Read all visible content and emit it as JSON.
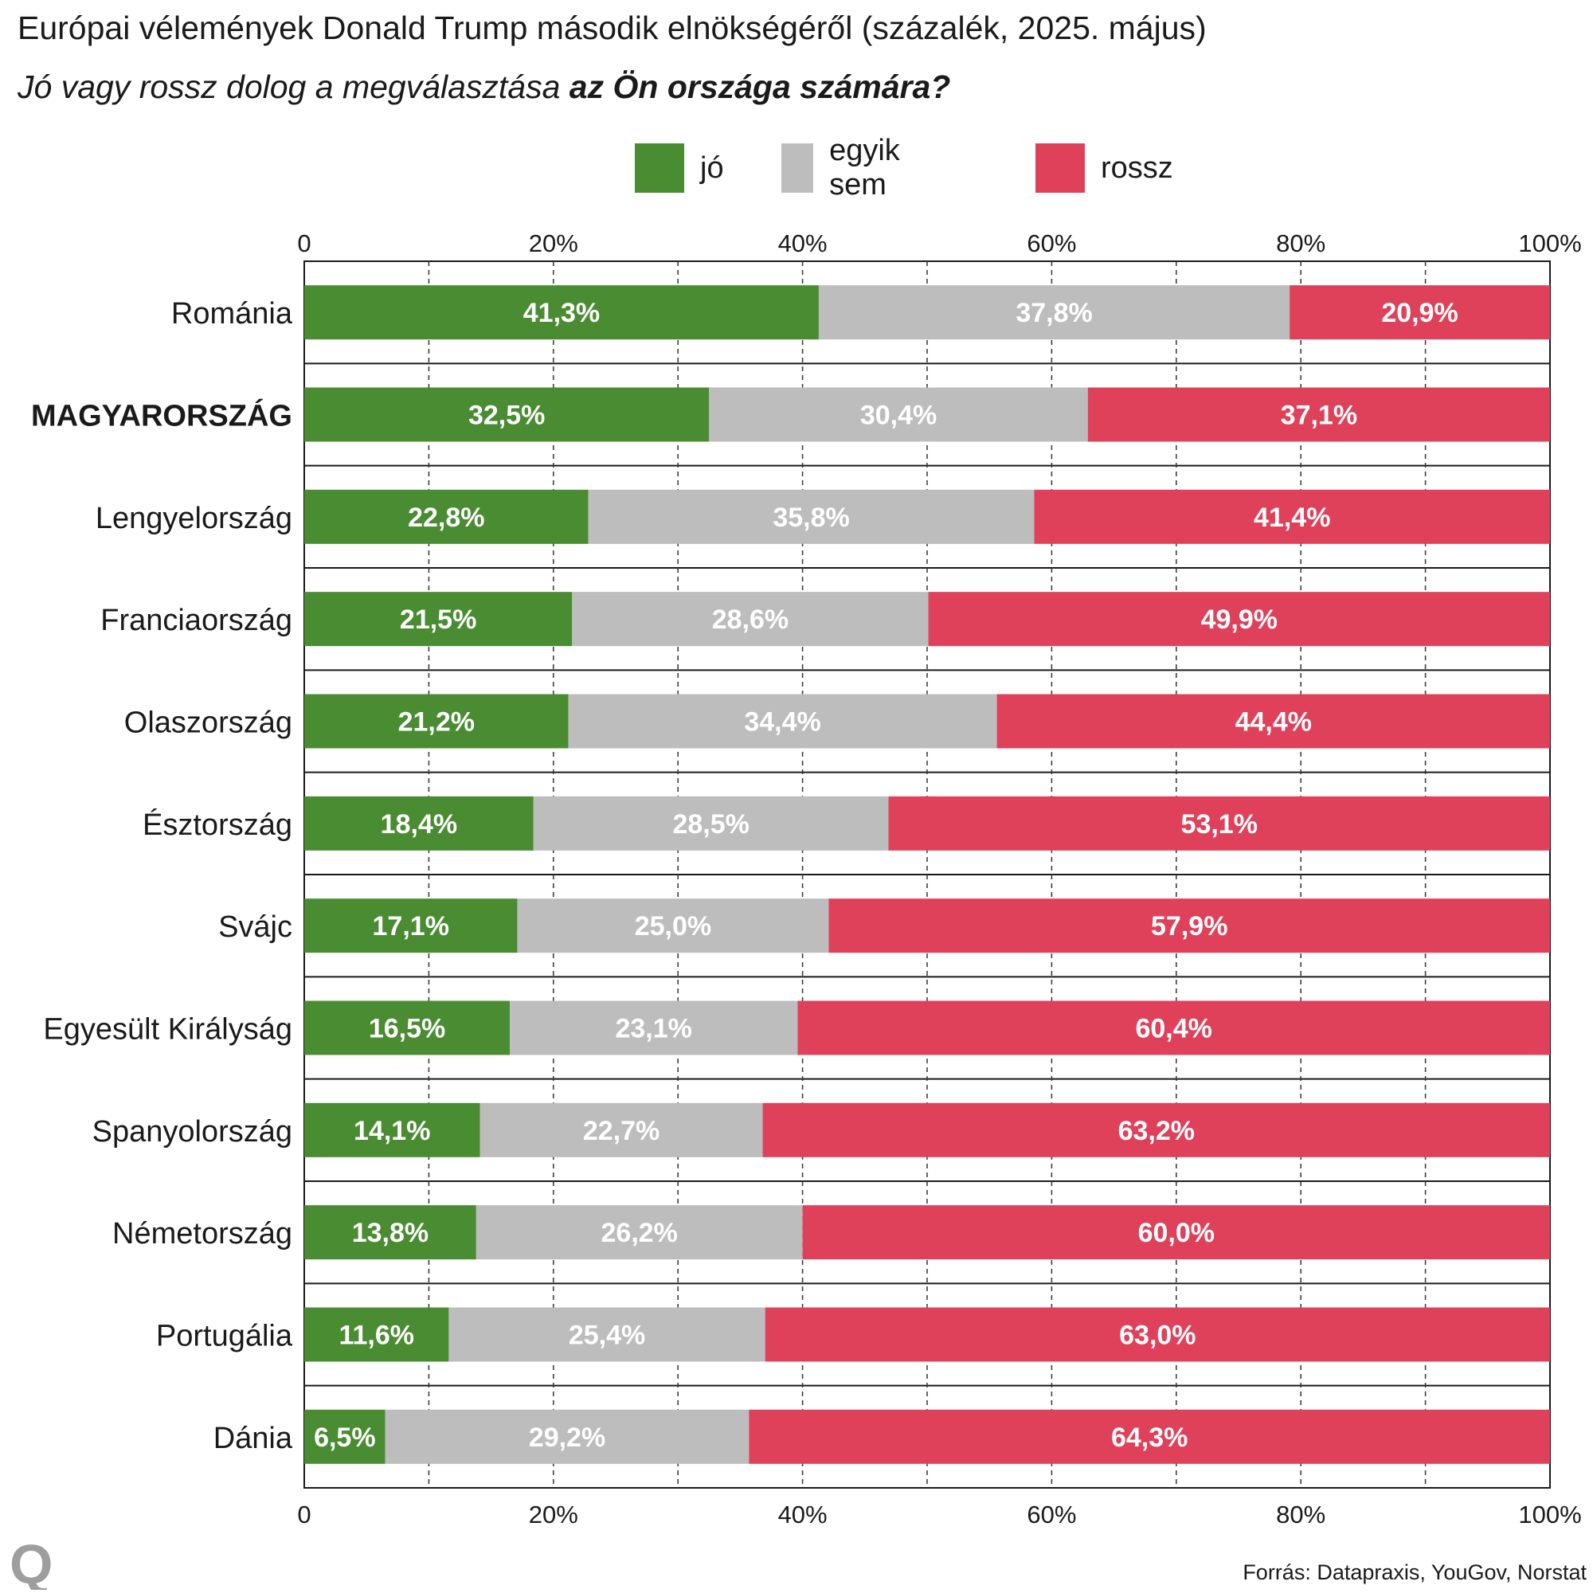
{
  "title": "Európai vélemények Donald Trump második elnökségéről (százalék, 2025. május)",
  "subtitle_plain": "Jó vagy rossz dolog a megválasztása ",
  "subtitle_bold": "az Ön országa számára?",
  "source": "Forrás: Datapraxis, YouGov, Norstat",
  "logo_text": "Q",
  "colors": {
    "jo": "#4a8c32",
    "egyik_sem": "#bdbdbd",
    "rossz": "#df415a"
  },
  "chart_data": {
    "type": "bar",
    "orientation": "horizontal",
    "stacked": true,
    "title": "Európai vélemények Donald Trump második elnökségéről (százalék, 2025. május)",
    "subtitle": "Jó vagy rossz dolog a megválasztása az Ön országa számára?",
    "categories": [
      "Románia",
      "MAGYARORSZÁG",
      "Lengyelország",
      "Franciaország",
      "Olaszország",
      "Észtország",
      "Svájc",
      "Egyesült Királyság",
      "Spanyolország",
      "Németország",
      "Portugália",
      "Dánia"
    ],
    "highlighted_category": "MAGYARORSZÁG",
    "series": [
      {
        "name": "jó",
        "color": "#4a8c32",
        "values": [
          41.3,
          32.5,
          22.8,
          21.5,
          21.2,
          18.4,
          17.1,
          16.5,
          14.1,
          13.8,
          11.6,
          6.5
        ],
        "labels": [
          "41,3%",
          "32,5%",
          "22,8%",
          "21,5%",
          "21,2%",
          "18,4%",
          "17,1%",
          "16,5%",
          "14,1%",
          "13,8%",
          "11,6%",
          "6,5%"
        ]
      },
      {
        "name": "egyik sem",
        "color": "#bdbdbd",
        "values": [
          37.8,
          30.4,
          35.8,
          28.6,
          34.4,
          28.5,
          25.0,
          23.1,
          22.7,
          26.2,
          25.4,
          29.2
        ],
        "labels": [
          "37,8%",
          "30,4%",
          "35,8%",
          "28,6%",
          "34,4%",
          "28,5%",
          "25,0%",
          "23,1%",
          "22,7%",
          "26,2%",
          "25,4%",
          "29,2%"
        ]
      },
      {
        "name": "rossz",
        "color": "#df415a",
        "values": [
          20.9,
          37.1,
          41.4,
          49.9,
          44.4,
          53.1,
          57.9,
          60.4,
          63.2,
          60.0,
          63.0,
          64.3
        ],
        "labels": [
          "20,9%",
          "37,1%",
          "41,4%",
          "49,9%",
          "44,4%",
          "53,1%",
          "57,9%",
          "60,4%",
          "63,2%",
          "60,0%",
          "63,0%",
          "64,3%"
        ]
      }
    ],
    "xlim": [
      0,
      100
    ],
    "ticks": [
      "0",
      "20%",
      "40%",
      "60%",
      "80%",
      "100%"
    ],
    "tick_values": [
      0,
      20,
      40,
      60,
      80,
      100
    ],
    "gridlines": "dashed at every 10%",
    "axis_labels_top_and_bottom": true,
    "legend_position": "top"
  }
}
